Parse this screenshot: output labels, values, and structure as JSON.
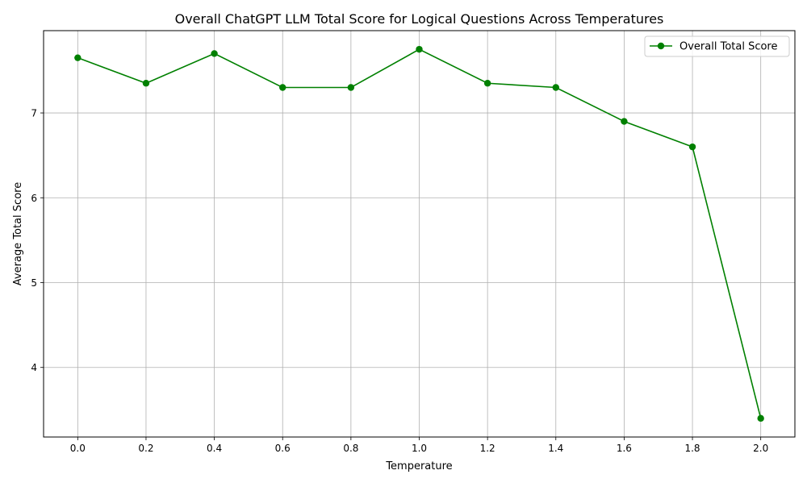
{
  "chart_data": {
    "type": "line",
    "title": "Overall ChatGPT LLM Total Score for  Logical Questions Across Temperatures",
    "xlabel": "Temperature",
    "ylabel": "Average Total Score",
    "x": [
      0.0,
      0.2,
      0.4,
      0.6,
      0.8,
      1.0,
      1.2,
      1.4,
      1.6,
      1.8,
      2.0
    ],
    "series": [
      {
        "name": "Overall Total Score",
        "color": "#008000",
        "marker": "circle",
        "values": [
          7.65,
          7.35,
          7.7,
          7.3,
          7.3,
          7.75,
          7.35,
          7.3,
          6.9,
          6.6,
          3.4
        ]
      }
    ],
    "xlim": [
      -0.1,
      2.1
    ],
    "ylim": [
      3.18,
      7.97
    ],
    "xticks": [
      "0.0",
      "0.2",
      "0.4",
      "0.6",
      "0.8",
      "1.0",
      "1.2",
      "1.4",
      "1.6",
      "1.8",
      "2.0"
    ],
    "yticks": [
      "4",
      "5",
      "6",
      "7"
    ],
    "grid": true,
    "legend_position": "top-right"
  }
}
